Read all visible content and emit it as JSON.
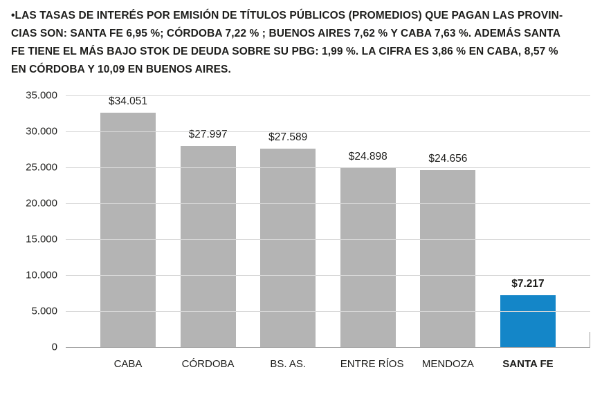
{
  "intro": {
    "lines": [
      "•LAS TASAS DE INTERÉS POR EMISIÓN DE TÍTULOS PÚBLICOS (PROMEDIOS) QUE PAGAN LAS PROVIN-",
      "CIAS SON: SANTA FE 6,95 %; CÓRDOBA 7,22 % ; BUENOS AIRES 7,62 % Y CABA 7,63 %. ADEMÁS SANTA",
      "FE TIENE EL MÁS BAJO STOK DE DEUDA SOBRE SU PBG: 1,99 %. LA CIFRA ES 3,86 % EN CABA, 8,57 %",
      "EN CÓRDOBA Y 10,09 EN BUENOS AIRES."
    ]
  },
  "chart_data": {
    "type": "bar",
    "title": "",
    "categories": [
      "CABA",
      "CÓRDOBA",
      "BS. AS.",
      "ENTRE RÍOS",
      "MENDOZA",
      "SANTA FE"
    ],
    "values": [
      34051,
      27997,
      27589,
      24898,
      24656,
      7217
    ],
    "value_labels": [
      "$34.051",
      "$27.997",
      "$27.589",
      "$24.898",
      "$24.656",
      "$7.217"
    ],
    "highlight_index": 5,
    "bar_color": "#b4b4b4",
    "highlight_color": "#1486c8",
    "xlabel": "",
    "ylabel": "",
    "ylim": [
      0,
      35000
    ],
    "yticks": [
      0,
      5000,
      10000,
      15000,
      20000,
      25000,
      30000,
      35000
    ],
    "ytick_labels": [
      "0",
      "5.000",
      "10.000",
      "15.000",
      "20.000",
      "25.000",
      "30.000",
      "35.000"
    ],
    "grid": "horizontal",
    "legend": "none"
  }
}
